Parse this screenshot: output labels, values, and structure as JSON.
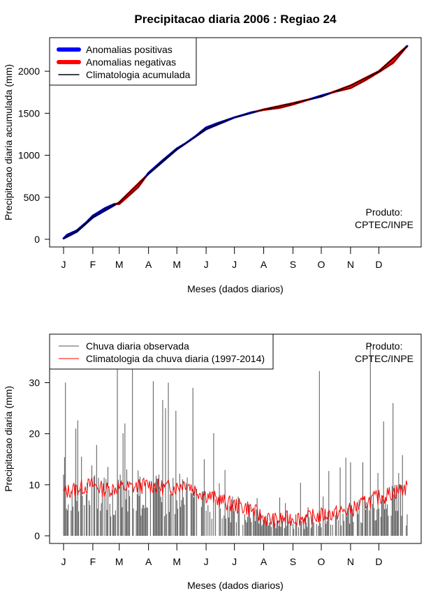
{
  "title": "Precipitacao diaria 2006 : Regiao 24",
  "colors": {
    "positive": "#0000ff",
    "negative": "#ff0000",
    "climatology": "#000000",
    "observed": "#555555",
    "daily_climatology": "#ff0000"
  },
  "credit_line1": "Produto:",
  "credit_line2": "CPTEC/INPE",
  "chart_data": [
    {
      "type": "area",
      "name": "accumulated",
      "xlabel": "Meses (dados diarios)",
      "ylabel": "Precipitacao diaria acumulada (mm)",
      "xlim": [
        1,
        365
      ],
      "ylim": [
        0,
        2300
      ],
      "month_ticks": [
        "J",
        "F",
        "M",
        "A",
        "M",
        "J",
        "J",
        "A",
        "S",
        "O",
        "N",
        "D"
      ],
      "month_start_days": [
        1,
        32,
        60,
        91,
        121,
        152,
        182,
        213,
        244,
        274,
        305,
        335
      ],
      "yticks": [
        0,
        500,
        1000,
        1500,
        2000
      ],
      "legend": [
        "Anomalias positivas",
        "Anomalias negativas",
        "Climatologia acumulada"
      ],
      "climatology_curve": [
        [
          1,
          10
        ],
        [
          15,
          90
        ],
        [
          32,
          260
        ],
        [
          60,
          440
        ],
        [
          91,
          780
        ],
        [
          121,
          1070
        ],
        [
          152,
          1310
        ],
        [
          182,
          1450
        ],
        [
          213,
          1545
        ],
        [
          244,
          1620
        ],
        [
          274,
          1700
        ],
        [
          305,
          1830
        ],
        [
          335,
          2000
        ],
        [
          365,
          2300
        ]
      ],
      "observed_curve": [
        [
          1,
          10
        ],
        [
          5,
          55
        ],
        [
          15,
          105
        ],
        [
          25,
          200
        ],
        [
          32,
          280
        ],
        [
          45,
          370
        ],
        [
          55,
          420
        ],
        [
          60,
          420
        ],
        [
          70,
          520
        ],
        [
          80,
          620
        ],
        [
          91,
          790
        ],
        [
          105,
          930
        ],
        [
          121,
          1080
        ],
        [
          130,
          1140
        ],
        [
          140,
          1220
        ],
        [
          152,
          1330
        ],
        [
          165,
          1385
        ],
        [
          182,
          1450
        ],
        [
          200,
          1510
        ],
        [
          213,
          1540
        ],
        [
          230,
          1565
        ],
        [
          244,
          1605
        ],
        [
          260,
          1660
        ],
        [
          274,
          1710
        ],
        [
          290,
          1760
        ],
        [
          305,
          1800
        ],
        [
          320,
          1890
        ],
        [
          335,
          1990
        ],
        [
          350,
          2100
        ],
        [
          365,
          2300
        ]
      ]
    },
    {
      "type": "line",
      "name": "daily",
      "xlabel": "Meses (dados diarios)",
      "ylabel": "Precipitacao diaria (mm)",
      "xlim": [
        1,
        365
      ],
      "ylim": [
        0,
        38
      ],
      "month_ticks": [
        "J",
        "F",
        "M",
        "A",
        "M",
        "J",
        "J",
        "A",
        "S",
        "O",
        "N",
        "D"
      ],
      "month_start_days": [
        1,
        32,
        60,
        91,
        121,
        152,
        182,
        213,
        244,
        274,
        305,
        335
      ],
      "yticks": [
        0,
        10,
        20,
        30
      ],
      "legend": [
        "Chuva diaria observada",
        "Climatologia da chuva diaria (1997-2014)"
      ],
      "observed_peaks": [
        [
          1,
          12
        ],
        [
          2,
          15.4
        ],
        [
          3,
          30
        ],
        [
          5,
          5
        ],
        [
          10,
          9
        ],
        [
          14,
          21
        ],
        [
          16,
          22.6
        ],
        [
          20,
          15.5
        ],
        [
          26,
          10.4
        ],
        [
          31,
          13.8
        ],
        [
          36,
          17.8
        ],
        [
          44,
          11.4
        ],
        [
          48,
          13.5
        ],
        [
          56,
          5
        ],
        [
          58,
          33
        ],
        [
          61,
          12
        ],
        [
          64,
          20.1
        ],
        [
          66,
          22
        ],
        [
          68,
          13
        ],
        [
          74,
          33
        ],
        [
          80,
          12.8
        ],
        [
          86,
          6
        ],
        [
          96,
          30.3
        ],
        [
          102,
          12
        ],
        [
          106,
          26.6
        ],
        [
          109,
          25
        ],
        [
          112,
          30
        ],
        [
          120,
          24.5
        ],
        [
          126,
          7
        ],
        [
          138,
          29
        ],
        [
          150,
          15
        ],
        [
          154,
          6
        ],
        [
          160,
          20.1
        ],
        [
          166,
          10.3
        ],
        [
          172,
          12.9
        ],
        [
          180,
          7.7
        ],
        [
          186,
          7.7
        ],
        [
          198,
          5.6
        ],
        [
          206,
          7.4
        ],
        [
          218,
          2
        ],
        [
          230,
          7.5
        ],
        [
          236,
          6.4
        ],
        [
          252,
          10.4
        ],
        [
          260,
          5.6
        ],
        [
          272,
          32.3
        ],
        [
          276,
          7.7
        ],
        [
          282,
          12.7
        ],
        [
          294,
          13.4
        ],
        [
          300,
          15.3
        ],
        [
          305,
          14.4
        ],
        [
          318,
          14.4
        ],
        [
          326,
          37.8
        ],
        [
          334,
          12.3
        ],
        [
          340,
          22.4
        ],
        [
          342,
          7.5
        ],
        [
          350,
          26
        ],
        [
          356,
          12.3
        ],
        [
          360,
          15.8
        ],
        [
          364,
          2
        ]
      ],
      "daily_climatology": [
        [
          1,
          8.5
        ],
        [
          20,
          9.5
        ],
        [
          31,
          10
        ],
        [
          45,
          9
        ],
        [
          60,
          9.5
        ],
        [
          75,
          9.5
        ],
        [
          91,
          10
        ],
        [
          105,
          9.5
        ],
        [
          121,
          9.5
        ],
        [
          130,
          10.5
        ],
        [
          140,
          9
        ],
        [
          152,
          8
        ],
        [
          165,
          7
        ],
        [
          182,
          6
        ],
        [
          197,
          5.5
        ],
        [
          213,
          3.5
        ],
        [
          225,
          3
        ],
        [
          244,
          3.5
        ],
        [
          260,
          3.5
        ],
        [
          274,
          4
        ],
        [
          290,
          4.5
        ],
        [
          305,
          5
        ],
        [
          320,
          6.5
        ],
        [
          335,
          7.5
        ],
        [
          350,
          8.5
        ],
        [
          365,
          9.5
        ]
      ]
    }
  ]
}
